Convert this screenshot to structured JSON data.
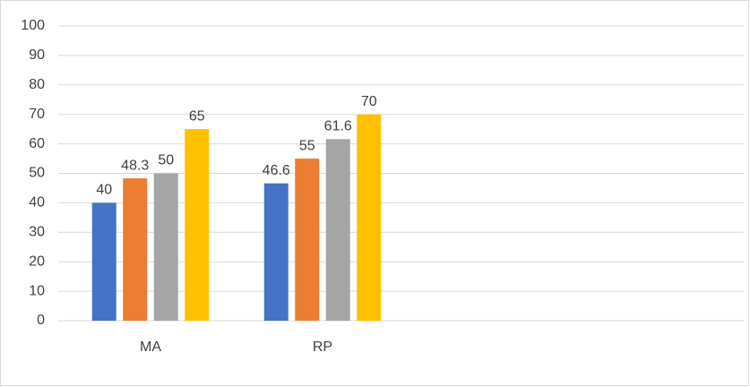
{
  "chart_data": {
    "type": "bar",
    "categories": [
      "MA",
      "RP",
      null,
      null
    ],
    "series": [
      {
        "color": "#4472c4",
        "values": [
          40,
          46.6,
          null,
          null
        ]
      },
      {
        "color": "#ed7d31",
        "values": [
          48.3,
          55,
          null,
          null
        ]
      },
      {
        "color": "#a5a5a5",
        "values": [
          50,
          61.6,
          null,
          null
        ]
      },
      {
        "color": "#ffc000",
        "values": [
          65,
          70,
          null,
          null
        ]
      }
    ],
    "ylim": [
      0,
      100
    ],
    "yticks": [
      0,
      10,
      20,
      30,
      40,
      50,
      60,
      70,
      80,
      90,
      100
    ],
    "grid": true
  }
}
